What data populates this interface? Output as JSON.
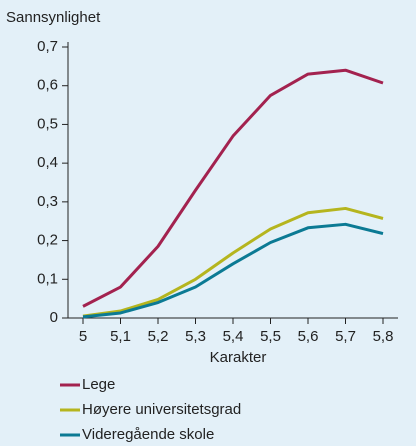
{
  "chart_data": {
    "type": "line",
    "y_label": "Sannsynlighet",
    "x_label": "Karakter",
    "x": [
      5,
      5.1,
      5.2,
      5.3,
      5.4,
      5.5,
      5.6,
      5.7,
      5.8
    ],
    "xlim": [
      4.96,
      5.84
    ],
    "xticks": [
      5,
      {
        "value": 5.1,
        "label": "5,1"
      },
      {
        "value": 5.2,
        "label": "5,2"
      },
      {
        "value": 5.3,
        "label": "5,3"
      },
      {
        "value": 5.4,
        "label": "5,4"
      },
      {
        "value": 5.5,
        "label": "5,5"
      },
      {
        "value": 5.6,
        "label": "5,6"
      },
      {
        "value": 5.7,
        "label": "5,7"
      },
      {
        "value": 5.8,
        "label": "5,8"
      }
    ],
    "ylim": [
      0,
      0.7
    ],
    "yticks": [
      0,
      {
        "value": 0.1,
        "label": "0,1"
      },
      {
        "value": 0.2,
        "label": "0,2"
      },
      {
        "value": 0.3,
        "label": "0,3"
      },
      {
        "value": 0.4,
        "label": "0,4"
      },
      {
        "value": 0.5,
        "label": "0,5"
      },
      {
        "value": 0.6,
        "label": "0,6"
      },
      {
        "value": 0.7,
        "label": "0,7"
      }
    ],
    "series": [
      {
        "name": "Lege",
        "color": "#a3224f",
        "values": [
          0.03,
          0.08,
          0.185,
          0.33,
          0.47,
          0.575,
          0.63,
          0.64,
          0.607
        ]
      },
      {
        "name": "Høyere universitetsgrad",
        "color": "#b5b51e",
        "values": [
          0.005,
          0.018,
          0.048,
          0.1,
          0.168,
          0.23,
          0.272,
          0.283,
          0.257
        ]
      },
      {
        "name": "Videregående skole",
        "color": "#0b7a94",
        "values": [
          0.003,
          0.013,
          0.04,
          0.08,
          0.14,
          0.195,
          0.233,
          0.242,
          0.218
        ]
      }
    ]
  }
}
